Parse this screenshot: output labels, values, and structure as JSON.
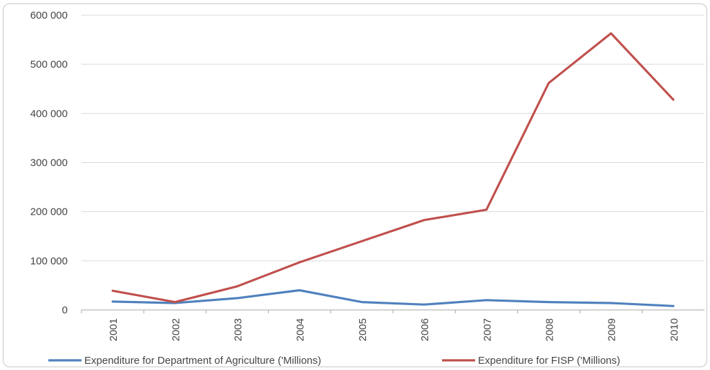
{
  "chart_data": {
    "type": "line",
    "categories": [
      "2001",
      "2002",
      "2003",
      "2004",
      "2005",
      "2006",
      "2007",
      "2008",
      "2009",
      "2010"
    ],
    "series": [
      {
        "name": "Expenditure for Department of Agriculture ('Millions)",
        "color": "#4f81bd",
        "values": [
          17000,
          14000,
          24000,
          40000,
          16000,
          11000,
          20000,
          16000,
          14000,
          8000
        ]
      },
      {
        "name": "Expenditure for FISP ('Millions)",
        "color": "#c0504d",
        "values": [
          39000,
          16000,
          48000,
          97000,
          140000,
          183000,
          204000,
          462000,
          563000,
          428000
        ]
      }
    ],
    "yticks": [
      "0",
      "100 000",
      "200 000",
      "300 000",
      "400 000",
      "500 000",
      "600 000"
    ],
    "ylim": [
      0,
      600000
    ],
    "grid": true,
    "legend": "bottom"
  }
}
